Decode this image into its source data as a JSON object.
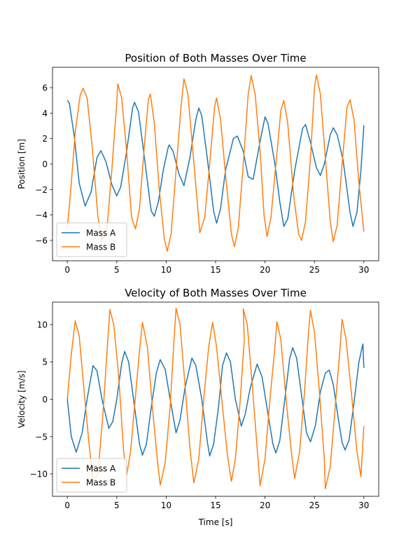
{
  "chart_data": [
    {
      "type": "line",
      "title": "Position of Both Masses Over Time",
      "xlabel": "",
      "ylabel": "Position [m]",
      "xlim": [
        -1.5,
        31.5
      ],
      "ylim": [
        -7.6,
        7.6
      ],
      "xticks": [
        0,
        5,
        10,
        15,
        20,
        25,
        30
      ],
      "yticks": [
        -6,
        -4,
        -2,
        0,
        2,
        4,
        6
      ],
      "ytick_labels": [
        "−6",
        "−4",
        "−2",
        "0",
        "2",
        "4",
        "6"
      ],
      "grid": false,
      "legend_position": "lower-left",
      "series": [
        {
          "name": "Mass A",
          "color": "#1f77b4",
          "points": [
            [
              0,
              5
            ],
            [
              0.2,
              4.8
            ],
            [
              0.7,
              2.2
            ],
            [
              1.2,
              -1.5
            ],
            [
              1.8,
              -3.3
            ],
            [
              2.4,
              -2.2
            ],
            [
              3,
              0.5
            ],
            [
              3.4,
              1.05
            ],
            [
              3.9,
              0.2
            ],
            [
              4.5,
              -1.6
            ],
            [
              5,
              -2.5
            ],
            [
              5.4,
              -1.8
            ],
            [
              6,
              1
            ],
            [
              6.6,
              4.4
            ],
            [
              6.8,
              4.85
            ],
            [
              7.2,
              4.1
            ],
            [
              7.8,
              0.5
            ],
            [
              8.4,
              -3.2
            ],
            [
              8.5,
              -3.7
            ],
            [
              8.8,
              -4.1
            ],
            [
              9.2,
              -3
            ],
            [
              9.7,
              -0.5
            ],
            [
              10.2,
              1.3
            ],
            [
              10.3,
              1.5
            ],
            [
              10.7,
              1
            ],
            [
              11.3,
              -0.8
            ],
            [
              11.8,
              -1.7
            ],
            [
              12.4,
              0.5
            ],
            [
              13,
              3.5
            ],
            [
              13.3,
              4.4
            ],
            [
              13.6,
              3.8
            ],
            [
              14.2,
              0.2
            ],
            [
              14.8,
              -3.7
            ],
            [
              15.1,
              -4.65
            ],
            [
              15.5,
              -3.5
            ],
            [
              16,
              -0.5
            ],
            [
              16.8,
              2
            ],
            [
              17.2,
              2.2
            ],
            [
              17.8,
              1
            ],
            [
              18.3,
              -1
            ],
            [
              18.8,
              -1.2
            ],
            [
              19.5,
              1.8
            ],
            [
              20,
              3.7
            ],
            [
              20.3,
              3.2
            ],
            [
              21,
              0
            ],
            [
              21.5,
              -3
            ],
            [
              21.9,
              -4.9
            ],
            [
              22.3,
              -4.3
            ],
            [
              23,
              -0.5
            ],
            [
              23.8,
              2.8
            ],
            [
              24.1,
              3.1
            ],
            [
              24.6,
              1.7
            ],
            [
              25.2,
              -0.3
            ],
            [
              25.6,
              -0.9
            ],
            [
              26,
              0
            ],
            [
              26.6,
              2.3
            ],
            [
              26.9,
              2.85
            ],
            [
              27.3,
              2.3
            ],
            [
              27.9,
              0.3
            ],
            [
              28.6,
              -3.8
            ],
            [
              28.9,
              -4.9
            ],
            [
              29.3,
              -3.8
            ],
            [
              29.7,
              -0.5
            ],
            [
              30,
              3.05
            ]
          ]
        },
        {
          "name": "Mass B",
          "color": "#ff7f0e",
          "points": [
            [
              0,
              -5
            ],
            [
              0.3,
              -2.5
            ],
            [
              0.8,
              2.5
            ],
            [
              1.3,
              5.4
            ],
            [
              1.6,
              5.95
            ],
            [
              2,
              5.2
            ],
            [
              2.5,
              1.5
            ],
            [
              3.1,
              -4.2
            ],
            [
              3.5,
              -6
            ],
            [
              4,
              -5.2
            ],
            [
              4.5,
              -0.5
            ],
            [
              5,
              4.8
            ],
            [
              5.1,
              6.3
            ],
            [
              5.5,
              5.2
            ],
            [
              6,
              1
            ],
            [
              6.5,
              -4.2
            ],
            [
              6.9,
              -5.1
            ],
            [
              7.3,
              -3.5
            ],
            [
              7.8,
              1.5
            ],
            [
              8.2,
              5.1
            ],
            [
              8.4,
              5.5
            ],
            [
              8.8,
              3.2
            ],
            [
              9.3,
              -2
            ],
            [
              9.8,
              -5.8
            ],
            [
              10.1,
              -6.85
            ],
            [
              10.5,
              -5.5
            ],
            [
              11,
              -0.5
            ],
            [
              11.5,
              4.5
            ],
            [
              11.8,
              6.7
            ],
            [
              12.2,
              5.5
            ],
            [
              12.7,
              1
            ],
            [
              13.2,
              -3.5
            ],
            [
              13.4,
              -5.4
            ],
            [
              13.9,
              -4.2
            ],
            [
              14.4,
              0
            ],
            [
              14.9,
              4.5
            ],
            [
              15.1,
              5.2
            ],
            [
              15.5,
              3.5
            ],
            [
              16,
              -0.8
            ],
            [
              16.6,
              -5.5
            ],
            [
              16.9,
              -6.5
            ],
            [
              17.3,
              -5
            ],
            [
              17.8,
              0
            ],
            [
              18.3,
              5.5
            ],
            [
              18.6,
              6.95
            ],
            [
              19,
              5.5
            ],
            [
              19.5,
              1
            ],
            [
              19.9,
              -4
            ],
            [
              20.2,
              -5.7
            ],
            [
              20.6,
              -4.2
            ],
            [
              21.2,
              0.8
            ],
            [
              21.6,
              4.2
            ],
            [
              21.9,
              5
            ],
            [
              22.3,
              3.2
            ],
            [
              22.9,
              -2.5
            ],
            [
              23.4,
              -5.5
            ],
            [
              23.7,
              -6
            ],
            [
              24.1,
              -4.5
            ],
            [
              24.6,
              0.5
            ],
            [
              25,
              6
            ],
            [
              25.2,
              7
            ],
            [
              25.6,
              5.5
            ],
            [
              26.1,
              0.5
            ],
            [
              26.6,
              -4.5
            ],
            [
              26.9,
              -6.1
            ],
            [
              27.3,
              -4.8
            ],
            [
              27.8,
              0
            ],
            [
              28.3,
              4.5
            ],
            [
              28.6,
              5.05
            ],
            [
              29,
              3.5
            ],
            [
              29.5,
              -1.5
            ],
            [
              30,
              -5.3
            ]
          ]
        }
      ]
    },
    {
      "type": "line",
      "title": "Velocity of Both Masses Over Time",
      "xlabel": "Time [s]",
      "ylabel": "Velocity [m/s]",
      "xlim": [
        -1.5,
        31.5
      ],
      "ylim": [
        -13,
        13
      ],
      "xticks": [
        0,
        5,
        10,
        15,
        20,
        25,
        30
      ],
      "yticks": [
        -10,
        -5,
        0,
        5,
        10
      ],
      "ytick_labels": [
        "−10",
        "−5",
        "0",
        "5",
        "10"
      ],
      "grid": false,
      "legend_position": "lower-left",
      "series": [
        {
          "name": "Mass A",
          "color": "#1f77b4",
          "points": [
            [
              0,
              0
            ],
            [
              0.4,
              -5
            ],
            [
              0.9,
              -7.1
            ],
            [
              1.5,
              -4.5
            ],
            [
              2,
              0
            ],
            [
              2.6,
              4.5
            ],
            [
              3,
              3.8
            ],
            [
              3.5,
              0
            ],
            [
              4.2,
              -3.9
            ],
            [
              4.6,
              -3
            ],
            [
              5,
              0
            ],
            [
              5.5,
              4.8
            ],
            [
              5.8,
              6.4
            ],
            [
              6.2,
              5
            ],
            [
              6.7,
              0
            ],
            [
              7.3,
              -6
            ],
            [
              7.6,
              -7.5
            ],
            [
              8,
              -6
            ],
            [
              8.5,
              -1
            ],
            [
              9,
              3.5
            ],
            [
              9.4,
              5.3
            ],
            [
              9.9,
              4
            ],
            [
              10.4,
              0
            ],
            [
              11,
              -4.5
            ],
            [
              11.4,
              -2.8
            ],
            [
              11.9,
              1.5
            ],
            [
              12.6,
              5.5
            ],
            [
              13,
              4.5
            ],
            [
              13.6,
              0
            ],
            [
              14.2,
              -6
            ],
            [
              14.4,
              -7.6
            ],
            [
              14.8,
              -6
            ],
            [
              15.3,
              -1
            ],
            [
              15.7,
              4.5
            ],
            [
              16.1,
              6.2
            ],
            [
              16.5,
              5
            ],
            [
              17,
              0
            ],
            [
              17.6,
              -3.6
            ],
            [
              18,
              -2
            ],
            [
              18.5,
              1.5
            ],
            [
              19.2,
              4.7
            ],
            [
              19.7,
              3
            ],
            [
              20.3,
              -2
            ],
            [
              20.8,
              -6
            ],
            [
              21.1,
              -7.2
            ],
            [
              21.5,
              -5.5
            ],
            [
              22,
              0
            ],
            [
              22.5,
              5.5
            ],
            [
              22.8,
              6.9
            ],
            [
              23.2,
              5.5
            ],
            [
              23.7,
              0.5
            ],
            [
              24.2,
              -4.5
            ],
            [
              24.6,
              -5.7
            ],
            [
              25.1,
              -3.5
            ],
            [
              25.6,
              1
            ],
            [
              26.1,
              3.5
            ],
            [
              26.5,
              3.9
            ],
            [
              26.9,
              2
            ],
            [
              27.4,
              -2.5
            ],
            [
              27.8,
              -5.8
            ],
            [
              28.1,
              -6.8
            ],
            [
              28.5,
              -5.5
            ],
            [
              29,
              -0.5
            ],
            [
              29.5,
              5
            ],
            [
              29.9,
              7.4
            ],
            [
              30,
              4.2
            ]
          ]
        },
        {
          "name": "Mass B",
          "color": "#ff7f0e",
          "points": [
            [
              0,
              0
            ],
            [
              0.4,
              6
            ],
            [
              0.8,
              10.5
            ],
            [
              1.2,
              8.5
            ],
            [
              1.7,
              1
            ],
            [
              2.2,
              -6
            ],
            [
              2.6,
              -11
            ],
            [
              3.1,
              -10
            ],
            [
              3.6,
              -2
            ],
            [
              4,
              6
            ],
            [
              4.3,
              12
            ],
            [
              4.7,
              10
            ],
            [
              5.2,
              3
            ],
            [
              5.7,
              -7
            ],
            [
              6,
              -10.2
            ],
            [
              6.4,
              -7
            ],
            [
              6.9,
              0.5
            ],
            [
              7.3,
              6.5
            ],
            [
              7.6,
              10.3
            ],
            [
              8.1,
              7
            ],
            [
              8.6,
              -1
            ],
            [
              9.1,
              -8
            ],
            [
              9.4,
              -11.5
            ],
            [
              9.9,
              -8.5
            ],
            [
              10.4,
              -1
            ],
            [
              10.8,
              8
            ],
            [
              11,
              12.2
            ],
            [
              11.4,
              10
            ],
            [
              11.9,
              2
            ],
            [
              12.4,
              -6.5
            ],
            [
              12.8,
              -11.2
            ],
            [
              13.3,
              -8
            ],
            [
              13.8,
              0
            ],
            [
              14.3,
              7
            ],
            [
              14.7,
              10.3
            ],
            [
              15.1,
              7
            ],
            [
              15.7,
              -1
            ],
            [
              16.2,
              -7.5
            ],
            [
              16.6,
              -11
            ],
            [
              17,
              -8
            ],
            [
              17.5,
              0
            ],
            [
              17.9,
              8
            ],
            [
              17.8,
              12.1
            ],
            [
              18.2,
              10
            ],
            [
              18.7,
              2
            ],
            [
              19.2,
              -6.5
            ],
            [
              19.5,
              -11.6
            ],
            [
              20,
              -8
            ],
            [
              20.5,
              0
            ],
            [
              21,
              7
            ],
            [
              21.2,
              10.4
            ],
            [
              21.6,
              8
            ],
            [
              22.2,
              -1
            ],
            [
              22.7,
              -7.5
            ],
            [
              23,
              -10.6
            ],
            [
              23.5,
              -7
            ],
            [
              24,
              1
            ],
            [
              24.4,
              9
            ],
            [
              24.6,
              11.9
            ],
            [
              25,
              9
            ],
            [
              25.5,
              1
            ],
            [
              26,
              -8
            ],
            [
              26.1,
              -12
            ],
            [
              26.6,
              -9
            ],
            [
              27.1,
              -1
            ],
            [
              27.6,
              7
            ],
            [
              27.8,
              10.7
            ],
            [
              28.2,
              8
            ],
            [
              28.8,
              0
            ],
            [
              29.3,
              -7
            ],
            [
              29.7,
              -10.4
            ],
            [
              30,
              -3.6
            ]
          ]
        }
      ]
    }
  ]
}
